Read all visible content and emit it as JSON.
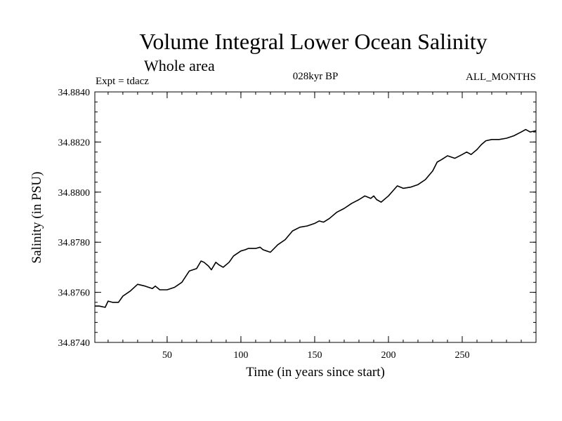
{
  "chart_data": {
    "type": "line",
    "title": "Volume Integral Lower Ocean Salinity",
    "subtitle": "Whole area",
    "annotations": {
      "left": "Expt = tdacz",
      "center": "028kyr BP",
      "right": "ALL_MONTHS"
    },
    "xlabel": "Time (in years since start)",
    "ylabel": "Salinity (in PSU)",
    "xlim": [
      1,
      300
    ],
    "ylim": [
      34.874,
      34.884
    ],
    "x_ticks": [
      50,
      100,
      150,
      200,
      250
    ],
    "y_ticks": [
      34.874,
      34.876,
      34.878,
      34.88,
      34.882,
      34.884
    ],
    "y_tick_labels": [
      "34.8740",
      "34.8760",
      "34.8780",
      "34.8800",
      "34.8820",
      "34.8840"
    ],
    "x_minor_step": 10,
    "y_minor_step": 0.0004,
    "grid": false,
    "series": [
      {
        "name": "Salinity",
        "color": "#000000",
        "x": [
          1,
          4,
          8,
          10,
          13,
          17,
          20,
          25,
          30,
          35,
          40,
          42,
          45,
          50,
          55,
          60,
          65,
          70,
          73,
          75,
          78,
          80,
          83,
          85,
          88,
          92,
          95,
          100,
          103,
          105,
          110,
          113,
          115,
          120,
          125,
          130,
          135,
          140,
          145,
          150,
          153,
          156,
          160,
          165,
          170,
          175,
          180,
          184,
          188,
          190,
          192,
          195,
          200,
          203,
          206,
          210,
          215,
          220,
          225,
          230,
          233,
          236,
          240,
          245,
          250,
          253,
          256,
          260,
          263,
          266,
          270,
          275,
          280,
          285,
          290,
          293,
          296,
          300
        ],
        "y": [
          34.87545,
          34.87545,
          34.8754,
          34.87565,
          34.8756,
          34.8756,
          34.87585,
          34.87605,
          34.87632,
          34.87625,
          34.87615,
          34.87625,
          34.8761,
          34.8761,
          34.8762,
          34.8764,
          34.87685,
          34.87695,
          34.87725,
          34.8772,
          34.87705,
          34.8769,
          34.8772,
          34.8771,
          34.877,
          34.8772,
          34.87745,
          34.87765,
          34.8777,
          34.87775,
          34.87775,
          34.8778,
          34.8777,
          34.8776,
          34.8779,
          34.8781,
          34.87845,
          34.8786,
          34.87865,
          34.87875,
          34.87885,
          34.8788,
          34.87895,
          34.8792,
          34.87935,
          34.87955,
          34.8797,
          34.87985,
          34.87975,
          34.87985,
          34.8797,
          34.8796,
          34.87985,
          34.88005,
          34.88025,
          34.88015,
          34.8802,
          34.8803,
          34.8805,
          34.88085,
          34.8812,
          34.8813,
          34.88145,
          34.88135,
          34.8815,
          34.8816,
          34.8815,
          34.8817,
          34.8819,
          34.88205,
          34.8821,
          34.8821,
          34.88215,
          34.88225,
          34.8824,
          34.8825,
          34.8824,
          34.88245
        ]
      }
    ]
  }
}
